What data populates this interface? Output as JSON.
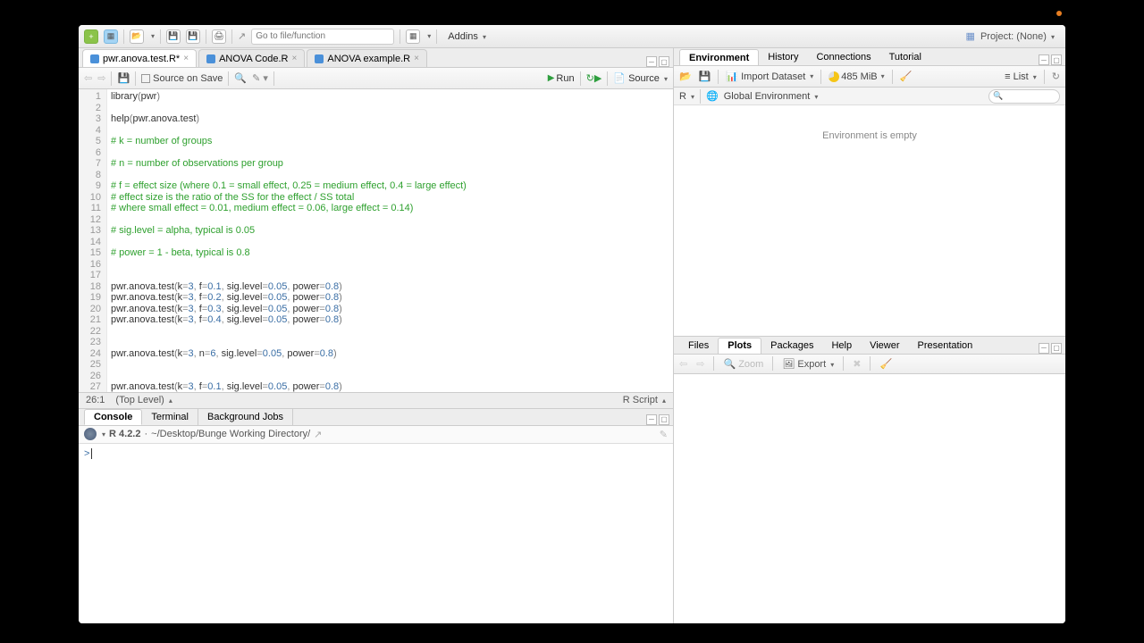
{
  "toolbar": {
    "goto_placeholder": "Go to file/function",
    "addins_label": "Addins",
    "project_label": "Project: (None)"
  },
  "editor_tabs": [
    {
      "name": "pwr.anova.test.R*",
      "active": true
    },
    {
      "name": "ANOVA Code.R",
      "active": false
    },
    {
      "name": "ANOVA example.R",
      "active": false
    }
  ],
  "sub_toolbar": {
    "source_on_save": "Source on Save",
    "run": "Run",
    "source": "Source"
  },
  "code_lines": [
    {
      "n": 1,
      "type": "code",
      "tokens": [
        [
          "fn",
          "library"
        ],
        [
          "paren",
          "("
        ],
        [
          "id",
          "pwr"
        ],
        [
          "paren",
          ")"
        ]
      ]
    },
    {
      "n": 2,
      "type": "blank"
    },
    {
      "n": 3,
      "type": "code",
      "tokens": [
        [
          "fn",
          "help"
        ],
        [
          "paren",
          "("
        ],
        [
          "id",
          "pwr.anova.test"
        ],
        [
          "paren",
          ")"
        ]
      ]
    },
    {
      "n": 4,
      "type": "blank"
    },
    {
      "n": 5,
      "type": "comment",
      "text": "# k = number of groups"
    },
    {
      "n": 6,
      "type": "blank"
    },
    {
      "n": 7,
      "type": "comment",
      "text": "# n = number of observations per group"
    },
    {
      "n": 8,
      "type": "blank"
    },
    {
      "n": 9,
      "type": "comment",
      "text": "# f = effect size (where 0.1 = small effect, 0.25 = medium effect, 0.4 = large effect)"
    },
    {
      "n": 10,
      "type": "comment",
      "text": "# effect size is the ratio of the SS for the effect / SS total"
    },
    {
      "n": 11,
      "type": "comment",
      "text": "# where small effect = 0.01, medium effect = 0.06, large effect = 0.14)"
    },
    {
      "n": 12,
      "type": "blank"
    },
    {
      "n": 13,
      "type": "comment",
      "text": "# sig.level = alpha, typical is 0.05"
    },
    {
      "n": 14,
      "type": "blank"
    },
    {
      "n": 15,
      "type": "comment",
      "text": "# power = 1 - beta, typical is 0.8"
    },
    {
      "n": 16,
      "type": "blank"
    },
    {
      "n": 17,
      "type": "blank"
    },
    {
      "n": 18,
      "type": "call",
      "args": "k=3, f=0.1, sig.level = 0.05, power = 0.8"
    },
    {
      "n": 19,
      "type": "call",
      "args": "k=3, f=0.2, sig.level = 0.05, power = 0.8"
    },
    {
      "n": 20,
      "type": "call",
      "args": "k=3, f=0.3, sig.level = 0.05, power = 0.8"
    },
    {
      "n": 21,
      "type": "call",
      "args": "k=3, f=0.4, sig.level = 0.05, power = 0.8"
    },
    {
      "n": 22,
      "type": "blank"
    },
    {
      "n": 23,
      "type": "blank"
    },
    {
      "n": 24,
      "type": "call",
      "args": "k=3, n=6, sig.level = 0.05, power = 0.8"
    },
    {
      "n": 25,
      "type": "blank"
    },
    {
      "n": 26,
      "type": "blank"
    },
    {
      "n": 27,
      "type": "call",
      "args": "k=3, f=0.1, sig.level = 0.05, power = 0.8"
    }
  ],
  "status": {
    "pos": "26:1",
    "scope": "(Top Level)",
    "type": "R Script"
  },
  "console_tabs": [
    "Console",
    "Terminal",
    "Background Jobs"
  ],
  "console": {
    "version": "R 4.2.2",
    "path": "~/Desktop/Bunge Working Directory/",
    "prompt": ">"
  },
  "env_tabs": [
    "Environment",
    "History",
    "Connections",
    "Tutorial"
  ],
  "env_toolbar": {
    "import": "Import Dataset",
    "memory": "485 MiB",
    "list": "List"
  },
  "env_scope": {
    "lang": "R",
    "scope": "Global Environment"
  },
  "env_empty": "Environment is empty",
  "plots_tabs": [
    "Files",
    "Plots",
    "Packages",
    "Help",
    "Viewer",
    "Presentation"
  ],
  "plots_toolbar": {
    "zoom": "Zoom",
    "export": "Export"
  },
  "colors": {
    "comment": "#2ea02e",
    "keyword": "#3a6ea5",
    "paren": "#7b7b7b",
    "bg": "#ffffff",
    "gutter": "#f3f3f3"
  }
}
